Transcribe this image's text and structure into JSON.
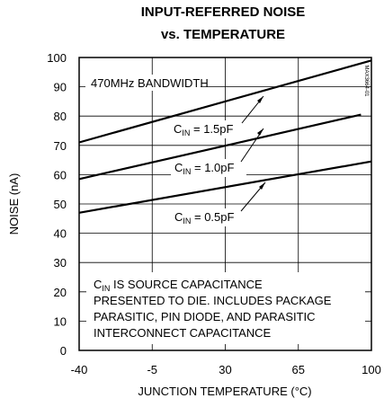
{
  "chart_data": {
    "type": "line",
    "title": [
      "INPUT-REFERRED NOISE",
      "vs. TEMPERATURE"
    ],
    "xlabel": "JUNCTION TEMPERATURE (°C)",
    "ylabel": "NOISE (nA)",
    "xlim": [
      -40,
      100
    ],
    "ylim": [
      0,
      100
    ],
    "x_ticks": [
      "-40",
      "-5",
      "30",
      "65",
      "100"
    ],
    "y_ticks": [
      "0",
      "10",
      "20",
      "30",
      "40",
      "50",
      "60",
      "70",
      "80",
      "90",
      "100"
    ],
    "grid": true,
    "part_number": "MAX3664-01",
    "series": [
      {
        "label_main": "C",
        "label_sub": "IN",
        "label_rest": " = 1.5pF",
        "points": [
          [
            -40,
            71
          ],
          [
            100,
            99
          ]
        ]
      },
      {
        "label_main": "C",
        "label_sub": "IN",
        "label_rest": " = 1.0pF",
        "points": [
          [
            -40,
            58.5
          ],
          [
            95,
            80.5
          ]
        ]
      },
      {
        "label_main": "C",
        "label_sub": "IN",
        "label_rest": " = 0.5pF",
        "points": [
          [
            -40,
            47
          ],
          [
            100,
            64.5
          ]
        ]
      }
    ],
    "annotations": {
      "bandwidth": "470MHz BANDWIDTH",
      "note_first_main": "C",
      "note_first_sub": "IN",
      "note_first_rest": " IS SOURCE CAPACITANCE",
      "note_lines": [
        "PRESENTED TO DIE. INCLUDES PACKAGE",
        "PARASITIC, PIN DIODE, AND PARASITIC",
        "INTERCONNECT CAPACITANCE"
      ]
    }
  }
}
